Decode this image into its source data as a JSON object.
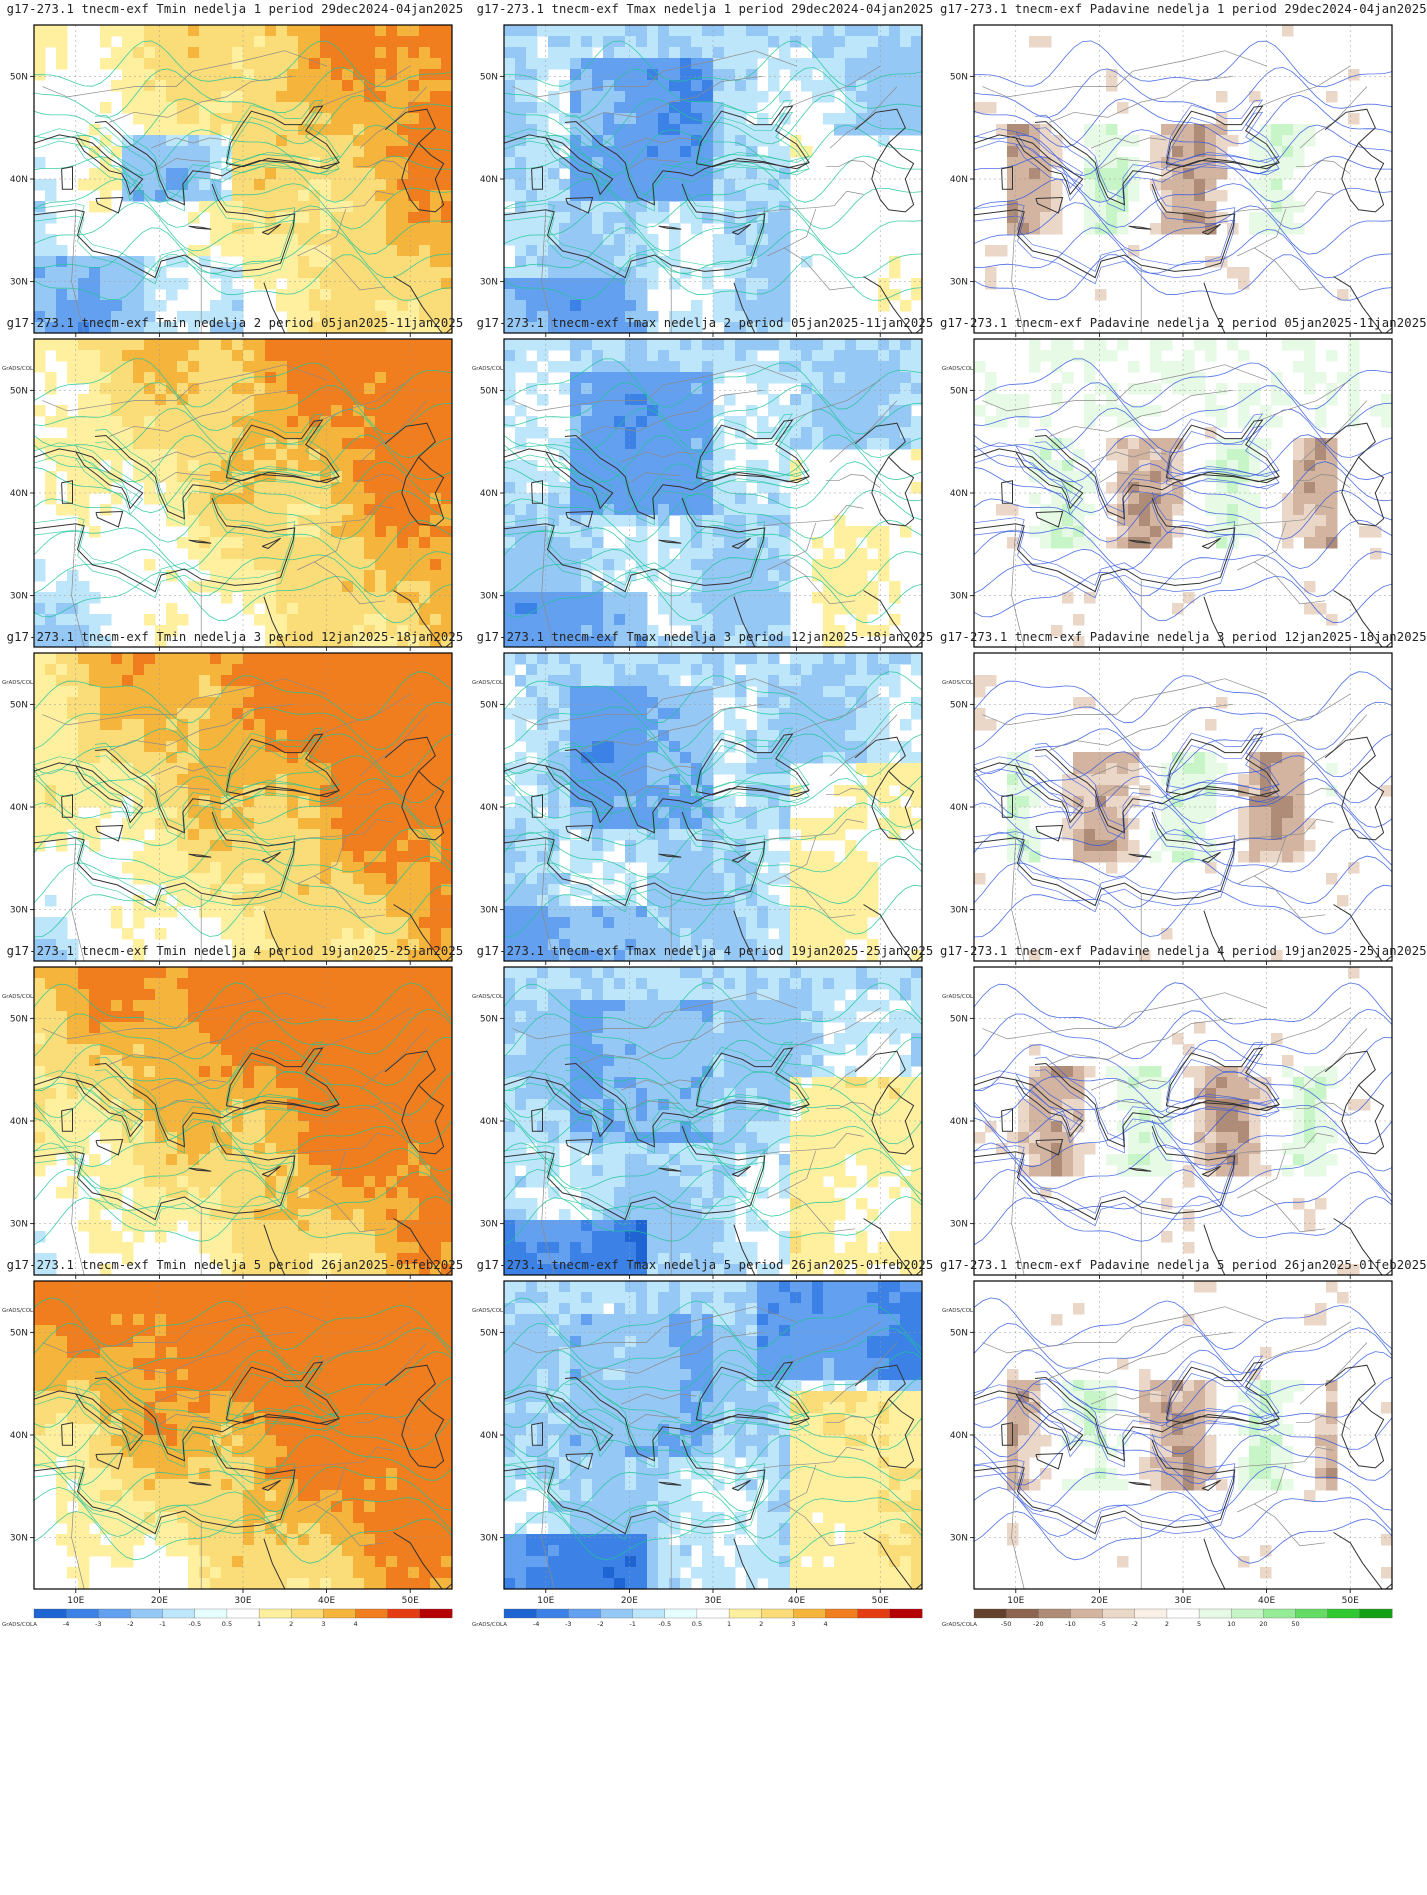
{
  "panels": [
    {
      "title": "g17-273.1 tnecm-exf Tmin nedelja 1 period 29dec2024-04jan2025",
      "type": "tmin",
      "week": 1
    },
    {
      "title": "g17-273.1 tnecm-exf Tmax nedelja 1 period 29dec2024-04jan2025",
      "type": "tmax",
      "week": 1
    },
    {
      "title": "g17-273.1 tnecm-exf Padavine nedelja 1 period 29dec2024-04jan2025",
      "type": "precip",
      "week": 1
    },
    {
      "title": "g17-273.1 tnecm-exf Tmin nedelja 2 period 05jan2025-11jan2025",
      "type": "tmin",
      "week": 2
    },
    {
      "title": "g17-273.1 tnecm-exf Tmax nedelja 2 period 05jan2025-11jan2025",
      "type": "tmax",
      "week": 2
    },
    {
      "title": "g17-273.1 tnecm-exf Padavine nedelja 2 period 05jan2025-11jan2025",
      "type": "precip",
      "week": 2
    },
    {
      "title": "g17-273.1 tnecm-exf Tmin nedelja 3 period 12jan2025-18jan2025",
      "type": "tmin",
      "week": 3
    },
    {
      "title": "g17-273.1 tnecm-exf Tmax nedelja 3 period 12jan2025-18jan2025",
      "type": "tmax",
      "week": 3
    },
    {
      "title": "g17-273.1 tnecm-exf Padavine nedelja 3 period 12jan2025-18jan2025",
      "type": "precip",
      "week": 3
    },
    {
      "title": "g17-273.1 tnecm-exf Tmin nedelja 4 period 19jan2025-25jan2025",
      "type": "tmin",
      "week": 4
    },
    {
      "title": "g17-273.1 tnecm-exf Tmax nedelja 4 period 19jan2025-25jan2025",
      "type": "tmax",
      "week": 4
    },
    {
      "title": "g17-273.1 tnecm-exf Padavine nedelja 4 period 19jan2025-25jan2025",
      "type": "precip",
      "week": 4
    },
    {
      "title": "g17-273.1 tnecm-exf Tmin nedelja 5 period 26jan2025-01feb2025",
      "type": "tmin",
      "week": 5
    },
    {
      "title": "g17-273.1 tnecm-exf Tmax nedelja 5 period 26jan2025-01feb2025",
      "type": "tmax",
      "week": 5
    },
    {
      "title": "g17-273.1 tnecm-exf Padavine nedelja 5 period 26jan2025-01feb2025",
      "type": "precip",
      "week": 5
    }
  ],
  "axes": {
    "lat_labels": [
      "30N",
      "40N",
      "50N"
    ],
    "lon_labels": [
      "10E",
      "20E",
      "30E",
      "40E",
      "50E"
    ],
    "lat_values": [
      30,
      40,
      50
    ],
    "lon_values": [
      10,
      20,
      30,
      40,
      50
    ],
    "lon_range": [
      5,
      55
    ],
    "lat_range": [
      25,
      55
    ]
  },
  "colorbars": {
    "temp": {
      "labels": [
        "-4",
        "-3",
        "-2",
        "-1",
        "-0.5",
        "0.5",
        "1",
        "2",
        "3",
        "4"
      ],
      "colors": [
        "#1e64d2",
        "#3c82e6",
        "#64a0f0",
        "#96c8f5",
        "#bee6fa",
        "#e6ffff",
        "#ffffff",
        "#fff0a0",
        "#fadc78",
        "#f5b43c",
        "#f07d1e",
        "#e63c14",
        "#b40000"
      ]
    },
    "precip": {
      "labels": [
        "-50",
        "-20",
        "-10",
        "-5",
        "-2",
        "2",
        "5",
        "10",
        "20",
        "50"
      ],
      "colors": [
        "#64412d",
        "#8c6450",
        "#af8c78",
        "#d2b4a0",
        "#ebd7c8",
        "#faf0e6",
        "#ffffff",
        "#e6fae6",
        "#c8f5c8",
        "#96eb96",
        "#64dc64",
        "#32c832",
        "#14a014"
      ]
    },
    "credit": "GrADS/COLA"
  }
}
